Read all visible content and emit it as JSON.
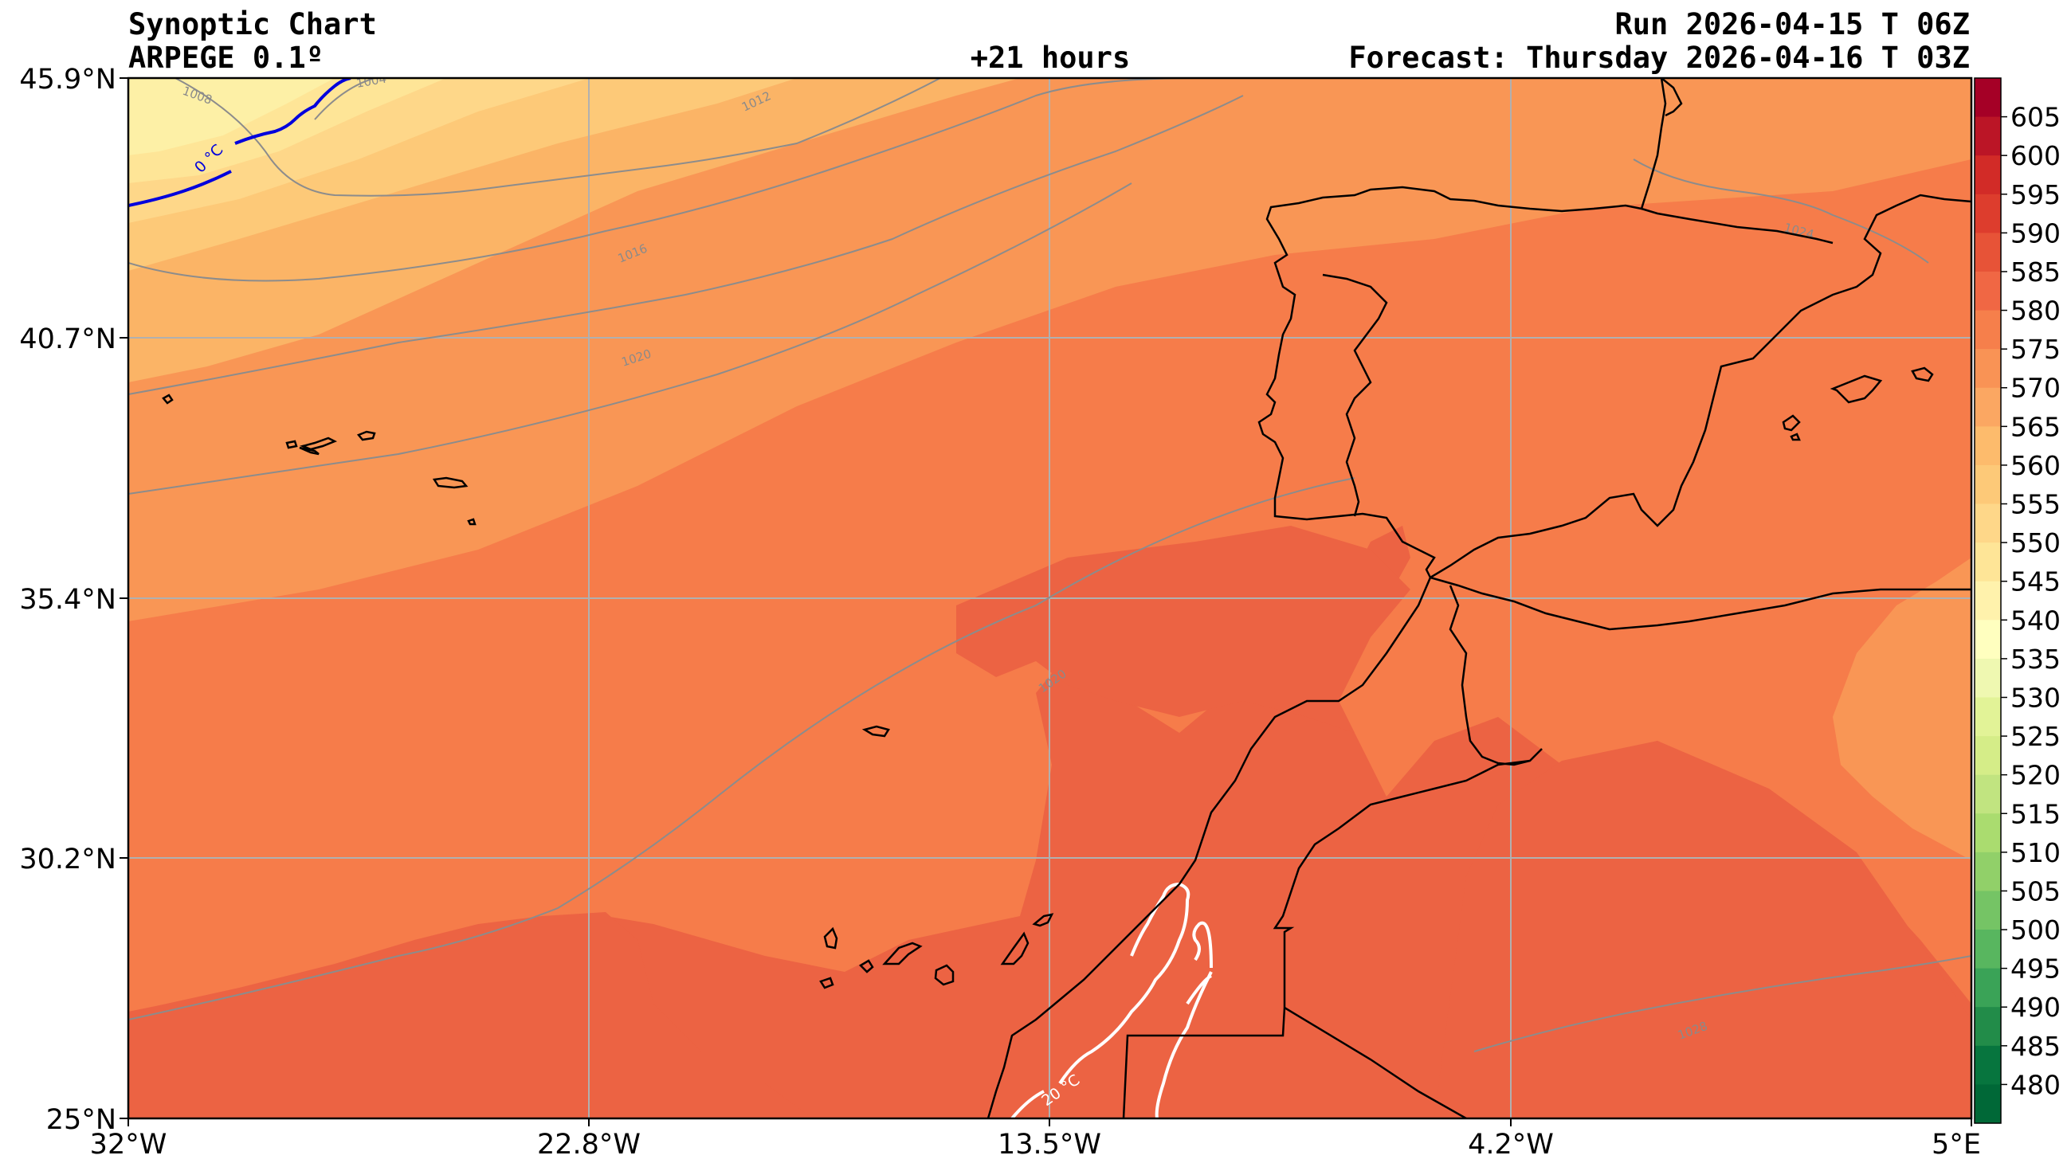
{
  "header": {
    "title": "Synoptic Chart",
    "model": "ARPEGE 0.1º",
    "lead_time": "+21 hours",
    "run": "Run 2026-04-15 T 06Z",
    "forecast": "Forecast: Thursday 2026-04-16 T 03Z"
  },
  "axes": {
    "lon_ticks": [
      "32°W",
      "22.8°W",
      "13.5°W",
      "4.2°W",
      "5°E"
    ],
    "lat_ticks": [
      "45.9°N",
      "40.7°N",
      "35.4°N",
      "30.2°N",
      "25°N"
    ]
  },
  "colorbar": {
    "ticks": [
      "605",
      "600",
      "595",
      "590",
      "585",
      "580",
      "575",
      "570",
      "565",
      "560",
      "555",
      "550",
      "545",
      "540",
      "535",
      "530",
      "525",
      "520",
      "515",
      "510",
      "505",
      "500",
      "495",
      "490",
      "485",
      "480"
    ],
    "colors": [
      "#a50026",
      "#bb1526",
      "#d22b27",
      "#dd3d2d",
      "#e75337",
      "#f06744",
      "#f67f4b",
      "#f99355",
      "#fba762",
      "#fdbb6c",
      "#fdc978",
      "#fed789",
      "#fee597",
      "#fff2ac",
      "#ffffbf",
      "#eff8b1",
      "#e2f397",
      "#d5ed88",
      "#c1e480",
      "#aadc6f",
      "#91d069",
      "#75c465",
      "#58b65f",
      "#3aa357",
      "#228c49",
      "#07753e",
      "#006837"
    ]
  },
  "isobars": [
    "1008",
    "1004",
    "1012",
    "1016",
    "1020",
    "1024",
    "1020",
    "1028"
  ],
  "isotherms": [
    "0 °C",
    "20 °C"
  ],
  "map": {
    "field_colors": {
      "c555": "#fdf0a6",
      "c553": "#fee597",
      "c550": "#fed789",
      "c560": "#fdc978",
      "c565": "#fbb466",
      "c570": "#f99655",
      "c575": "#f67c4a",
      "c580": "#ec6343",
      "isobar": "#8c8c8c",
      "isotherm_cold": "#0000dd",
      "isotherm_warm": "#ffffff",
      "coast": "#000000",
      "grid": "#b0b0b0"
    }
  }
}
